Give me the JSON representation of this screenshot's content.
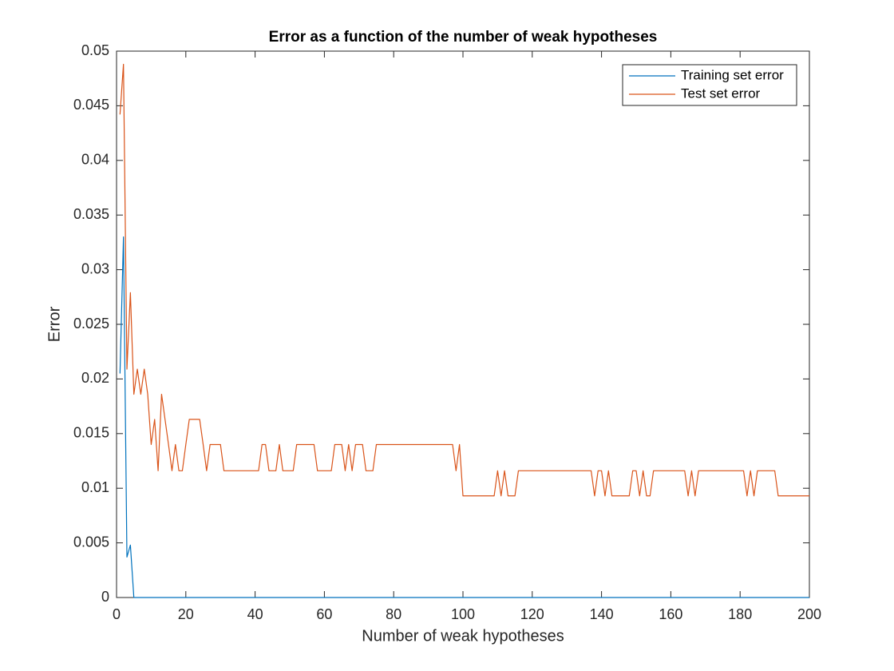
{
  "chart_data": {
    "type": "line",
    "title": "Error as a function of the number of weak hypotheses",
    "x_label": "Number of weak hypotheses",
    "y_label": "Error",
    "x": [
      1,
      2,
      3,
      4,
      5,
      6,
      7,
      8,
      9,
      10,
      11,
      12,
      13,
      14,
      15,
      16,
      17,
      18,
      19,
      20,
      21,
      22,
      23,
      24,
      25,
      26,
      27,
      28,
      29,
      30,
      31,
      32,
      33,
      34,
      35,
      36,
      37,
      38,
      39,
      40,
      41,
      42,
      43,
      44,
      45,
      46,
      47,
      48,
      49,
      50,
      51,
      52,
      53,
      54,
      55,
      56,
      57,
      58,
      59,
      60,
      61,
      62,
      63,
      64,
      65,
      66,
      67,
      68,
      69,
      70,
      71,
      72,
      73,
      74,
      75,
      76,
      77,
      78,
      79,
      80,
      81,
      82,
      83,
      84,
      85,
      86,
      87,
      88,
      89,
      90,
      91,
      92,
      93,
      94,
      95,
      96,
      97,
      98,
      99,
      100,
      101,
      102,
      103,
      104,
      105,
      106,
      107,
      108,
      109,
      110,
      111,
      112,
      113,
      114,
      115,
      116,
      117,
      118,
      119,
      120,
      121,
      122,
      123,
      124,
      125,
      126,
      127,
      128,
      129,
      130,
      131,
      132,
      133,
      134,
      135,
      136,
      137,
      138,
      139,
      140,
      141,
      142,
      143,
      144,
      145,
      146,
      147,
      148,
      149,
      150,
      151,
      152,
      153,
      154,
      155,
      156,
      157,
      158,
      159,
      160,
      161,
      162,
      163,
      164,
      165,
      166,
      167,
      168,
      169,
      170,
      171,
      172,
      173,
      174,
      175,
      176,
      177,
      178,
      179,
      180,
      181,
      182,
      183,
      184,
      185,
      186,
      187,
      188,
      189,
      190,
      191,
      192,
      193,
      194,
      195,
      196,
      197,
      198,
      199,
      200
    ],
    "series": [
      {
        "name": "Training set error",
        "color": "#0072BD",
        "values": [
          0.0205,
          0.033,
          0.0037,
          0.0048,
          0,
          0,
          0,
          0,
          0,
          0,
          0,
          0,
          0,
          0,
          0,
          0,
          0,
          0,
          0,
          0,
          0,
          0,
          0,
          0,
          0,
          0,
          0,
          0,
          0,
          0,
          0,
          0,
          0,
          0,
          0,
          0,
          0,
          0,
          0,
          0,
          0,
          0,
          0,
          0,
          0,
          0,
          0,
          0,
          0,
          0,
          0,
          0,
          0,
          0,
          0,
          0,
          0,
          0,
          0,
          0,
          0,
          0,
          0,
          0,
          0,
          0,
          0,
          0,
          0,
          0,
          0,
          0,
          0,
          0,
          0,
          0,
          0,
          0,
          0,
          0,
          0,
          0,
          0,
          0,
          0,
          0,
          0,
          0,
          0,
          0,
          0,
          0,
          0,
          0,
          0,
          0,
          0,
          0,
          0,
          0,
          0,
          0,
          0,
          0,
          0,
          0,
          0,
          0,
          0,
          0,
          0,
          0,
          0,
          0,
          0,
          0,
          0,
          0,
          0,
          0,
          0,
          0,
          0,
          0,
          0,
          0,
          0,
          0,
          0,
          0,
          0,
          0,
          0,
          0,
          0,
          0,
          0,
          0,
          0,
          0,
          0,
          0,
          0,
          0,
          0,
          0,
          0,
          0,
          0,
          0,
          0,
          0,
          0,
          0,
          0,
          0,
          0,
          0,
          0,
          0,
          0,
          0,
          0,
          0,
          0,
          0,
          0,
          0,
          0,
          0,
          0,
          0,
          0,
          0,
          0,
          0,
          0,
          0,
          0,
          0,
          0,
          0,
          0,
          0,
          0,
          0,
          0,
          0,
          0,
          0,
          0,
          0,
          0,
          0,
          0,
          0,
          0,
          0,
          0,
          0
        ]
      },
      {
        "name": "Test set error",
        "color": "#D95319",
        "values": [
          0.0442,
          0.0488,
          0.0209,
          0.0279,
          0.0186,
          0.0209,
          0.0186,
          0.0209,
          0.0186,
          0.014,
          0.0163,
          0.0116,
          0.0186,
          0.0163,
          0.014,
          0.0116,
          0.014,
          0.0116,
          0.0116,
          0.014,
          0.0163,
          0.0163,
          0.0163,
          0.0163,
          0.014,
          0.0116,
          0.014,
          0.014,
          0.014,
          0.014,
          0.0116,
          0.0116,
          0.0116,
          0.0116,
          0.0116,
          0.0116,
          0.0116,
          0.0116,
          0.0116,
          0.0116,
          0.0116,
          0.014,
          0.014,
          0.0116,
          0.0116,
          0.0116,
          0.014,
          0.0116,
          0.0116,
          0.0116,
          0.0116,
          0.014,
          0.014,
          0.014,
          0.014,
          0.014,
          0.014,
          0.0116,
          0.0116,
          0.0116,
          0.0116,
          0.0116,
          0.014,
          0.014,
          0.014,
          0.0116,
          0.014,
          0.0116,
          0.014,
          0.014,
          0.014,
          0.0116,
          0.0116,
          0.0116,
          0.014,
          0.014,
          0.014,
          0.014,
          0.014,
          0.014,
          0.014,
          0.014,
          0.014,
          0.014,
          0.014,
          0.014,
          0.014,
          0.014,
          0.014,
          0.014,
          0.014,
          0.014,
          0.014,
          0.014,
          0.014,
          0.014,
          0.014,
          0.0116,
          0.014,
          0.0093,
          0.0093,
          0.0093,
          0.0093,
          0.0093,
          0.0093,
          0.0093,
          0.0093,
          0.0093,
          0.0093,
          0.0116,
          0.0093,
          0.0116,
          0.0093,
          0.0093,
          0.0093,
          0.0116,
          0.0116,
          0.0116,
          0.0116,
          0.0116,
          0.0116,
          0.0116,
          0.0116,
          0.0116,
          0.0116,
          0.0116,
          0.0116,
          0.0116,
          0.0116,
          0.0116,
          0.0116,
          0.0116,
          0.0116,
          0.0116,
          0.0116,
          0.0116,
          0.0116,
          0.0093,
          0.0116,
          0.0116,
          0.0093,
          0.0116,
          0.0093,
          0.0093,
          0.0093,
          0.0093,
          0.0093,
          0.0093,
          0.0116,
          0.0116,
          0.0093,
          0.0116,
          0.0093,
          0.0093,
          0.0116,
          0.0116,
          0.0116,
          0.0116,
          0.0116,
          0.0116,
          0.0116,
          0.0116,
          0.0116,
          0.0116,
          0.0093,
          0.0116,
          0.0093,
          0.0116,
          0.0116,
          0.0116,
          0.0116,
          0.0116,
          0.0116,
          0.0116,
          0.0116,
          0.0116,
          0.0116,
          0.0116,
          0.0116,
          0.0116,
          0.0116,
          0.0093,
          0.0116,
          0.0093,
          0.0116,
          0.0116,
          0.0116,
          0.0116,
          0.0116,
          0.0116,
          0.0093,
          0.0093,
          0.0093,
          0.0093,
          0.0093,
          0.0093,
          0.0093,
          0.0093,
          0.0093,
          0.0093
        ]
      }
    ],
    "xlim": [
      0,
      200
    ],
    "xticks": [
      0,
      20,
      40,
      60,
      80,
      100,
      120,
      140,
      160,
      180,
      200
    ],
    "ylim": [
      0,
      0.05
    ],
    "yticks": [
      0,
      0.005,
      0.01,
      0.015,
      0.02,
      0.025,
      0.03,
      0.035,
      0.04,
      0.045,
      0.05
    ],
    "legend": "northeast"
  }
}
